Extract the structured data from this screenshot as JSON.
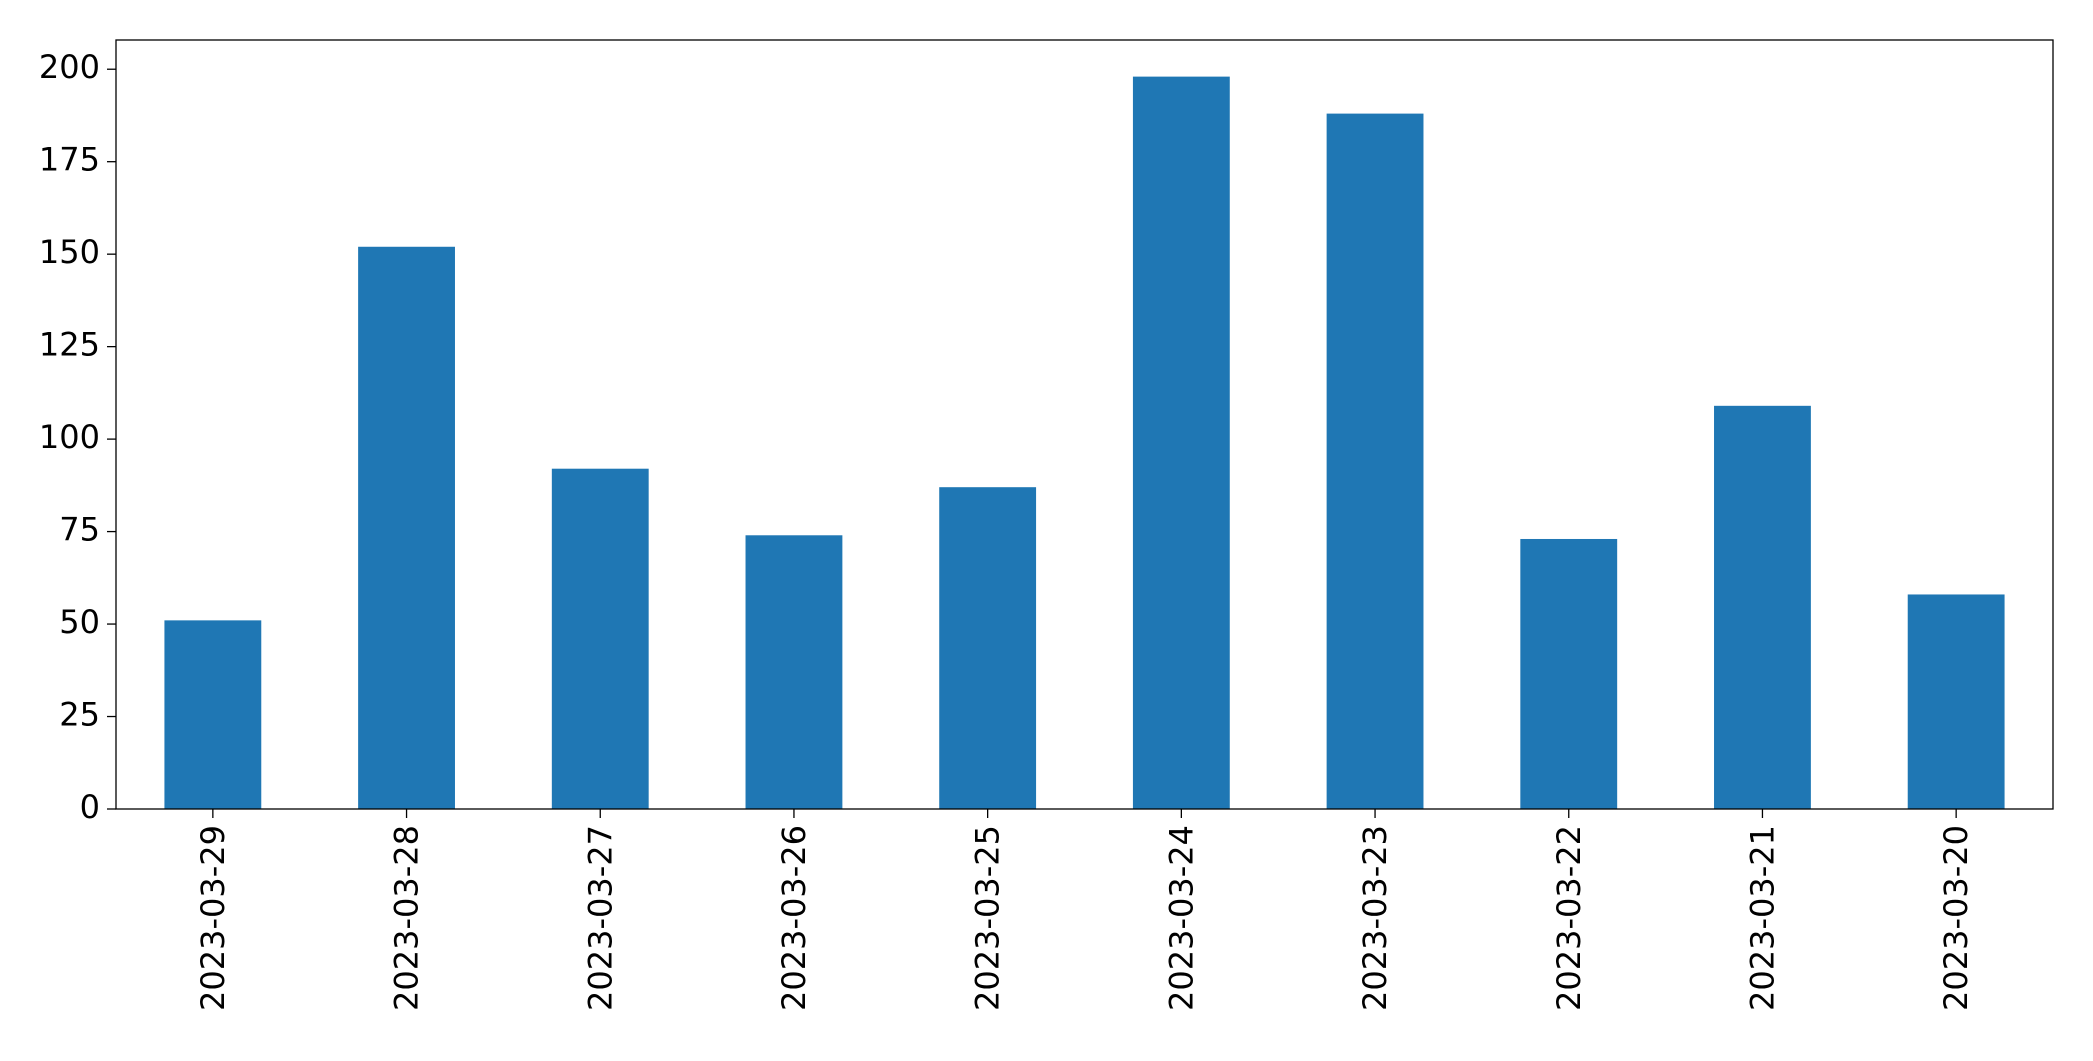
{
  "chart_data": {
    "type": "bar",
    "categories": [
      "2023-03-29",
      "2023-03-28",
      "2023-03-27",
      "2023-03-26",
      "2023-03-25",
      "2023-03-24",
      "2023-03-23",
      "2023-03-22",
      "2023-03-21",
      "2023-03-20"
    ],
    "values": [
      51,
      152,
      92,
      74,
      87,
      198,
      188,
      73,
      109,
      58
    ],
    "color": "#1f77b4",
    "ylim": [
      0,
      207.9
    ],
    "yticks": [
      0,
      25,
      50,
      75,
      100,
      125,
      150,
      175,
      200
    ],
    "grid": false
  }
}
